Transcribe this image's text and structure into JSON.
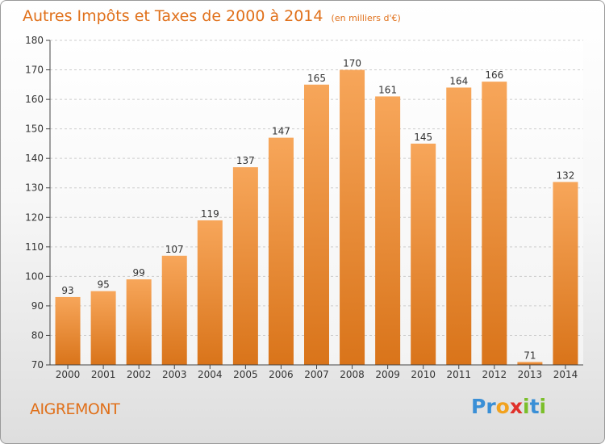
{
  "header": {
    "title": "Autres Impôts et Taxes de 2000 à 2014",
    "subtitle": "(en milliers d'€)"
  },
  "footer": {
    "place": "AIGREMONT",
    "logo_text": "Proxiti",
    "logo_letters": [
      {
        "ch": "P",
        "color": "#3a8fd6"
      },
      {
        "ch": "r",
        "color": "#3a8fd6"
      },
      {
        "ch": "o",
        "color": "#f2a21e"
      },
      {
        "ch": "x",
        "color": "#e0312b"
      },
      {
        "ch": "i",
        "color": "#7bbf2a"
      },
      {
        "ch": "t",
        "color": "#3a8fd6"
      },
      {
        "ch": "i",
        "color": "#7bbf2a"
      }
    ]
  },
  "colors": {
    "accent": "#e0701a",
    "bar_top": "#f7a65a",
    "bar_bottom": "#d9741a",
    "axis": "#444444",
    "grid": "#cccccc"
  },
  "chart_data": {
    "type": "bar",
    "title": "Autres Impôts et Taxes de 2000 à 2014",
    "subtitle": "(en milliers d'€)",
    "categories": [
      "2000",
      "2001",
      "2002",
      "2003",
      "2004",
      "2005",
      "2006",
      "2007",
      "2008",
      "2009",
      "2010",
      "2011",
      "2012",
      "2013",
      "2014"
    ],
    "values": [
      93,
      95,
      99,
      107,
      119,
      137,
      147,
      165,
      170,
      161,
      145,
      164,
      166,
      71,
      132
    ],
    "ylim": [
      70,
      180
    ],
    "yticks": [
      70,
      80,
      90,
      100,
      110,
      120,
      130,
      140,
      150,
      160,
      170,
      180
    ],
    "grid": true,
    "legend": "none",
    "xlabel": "",
    "ylabel": ""
  }
}
